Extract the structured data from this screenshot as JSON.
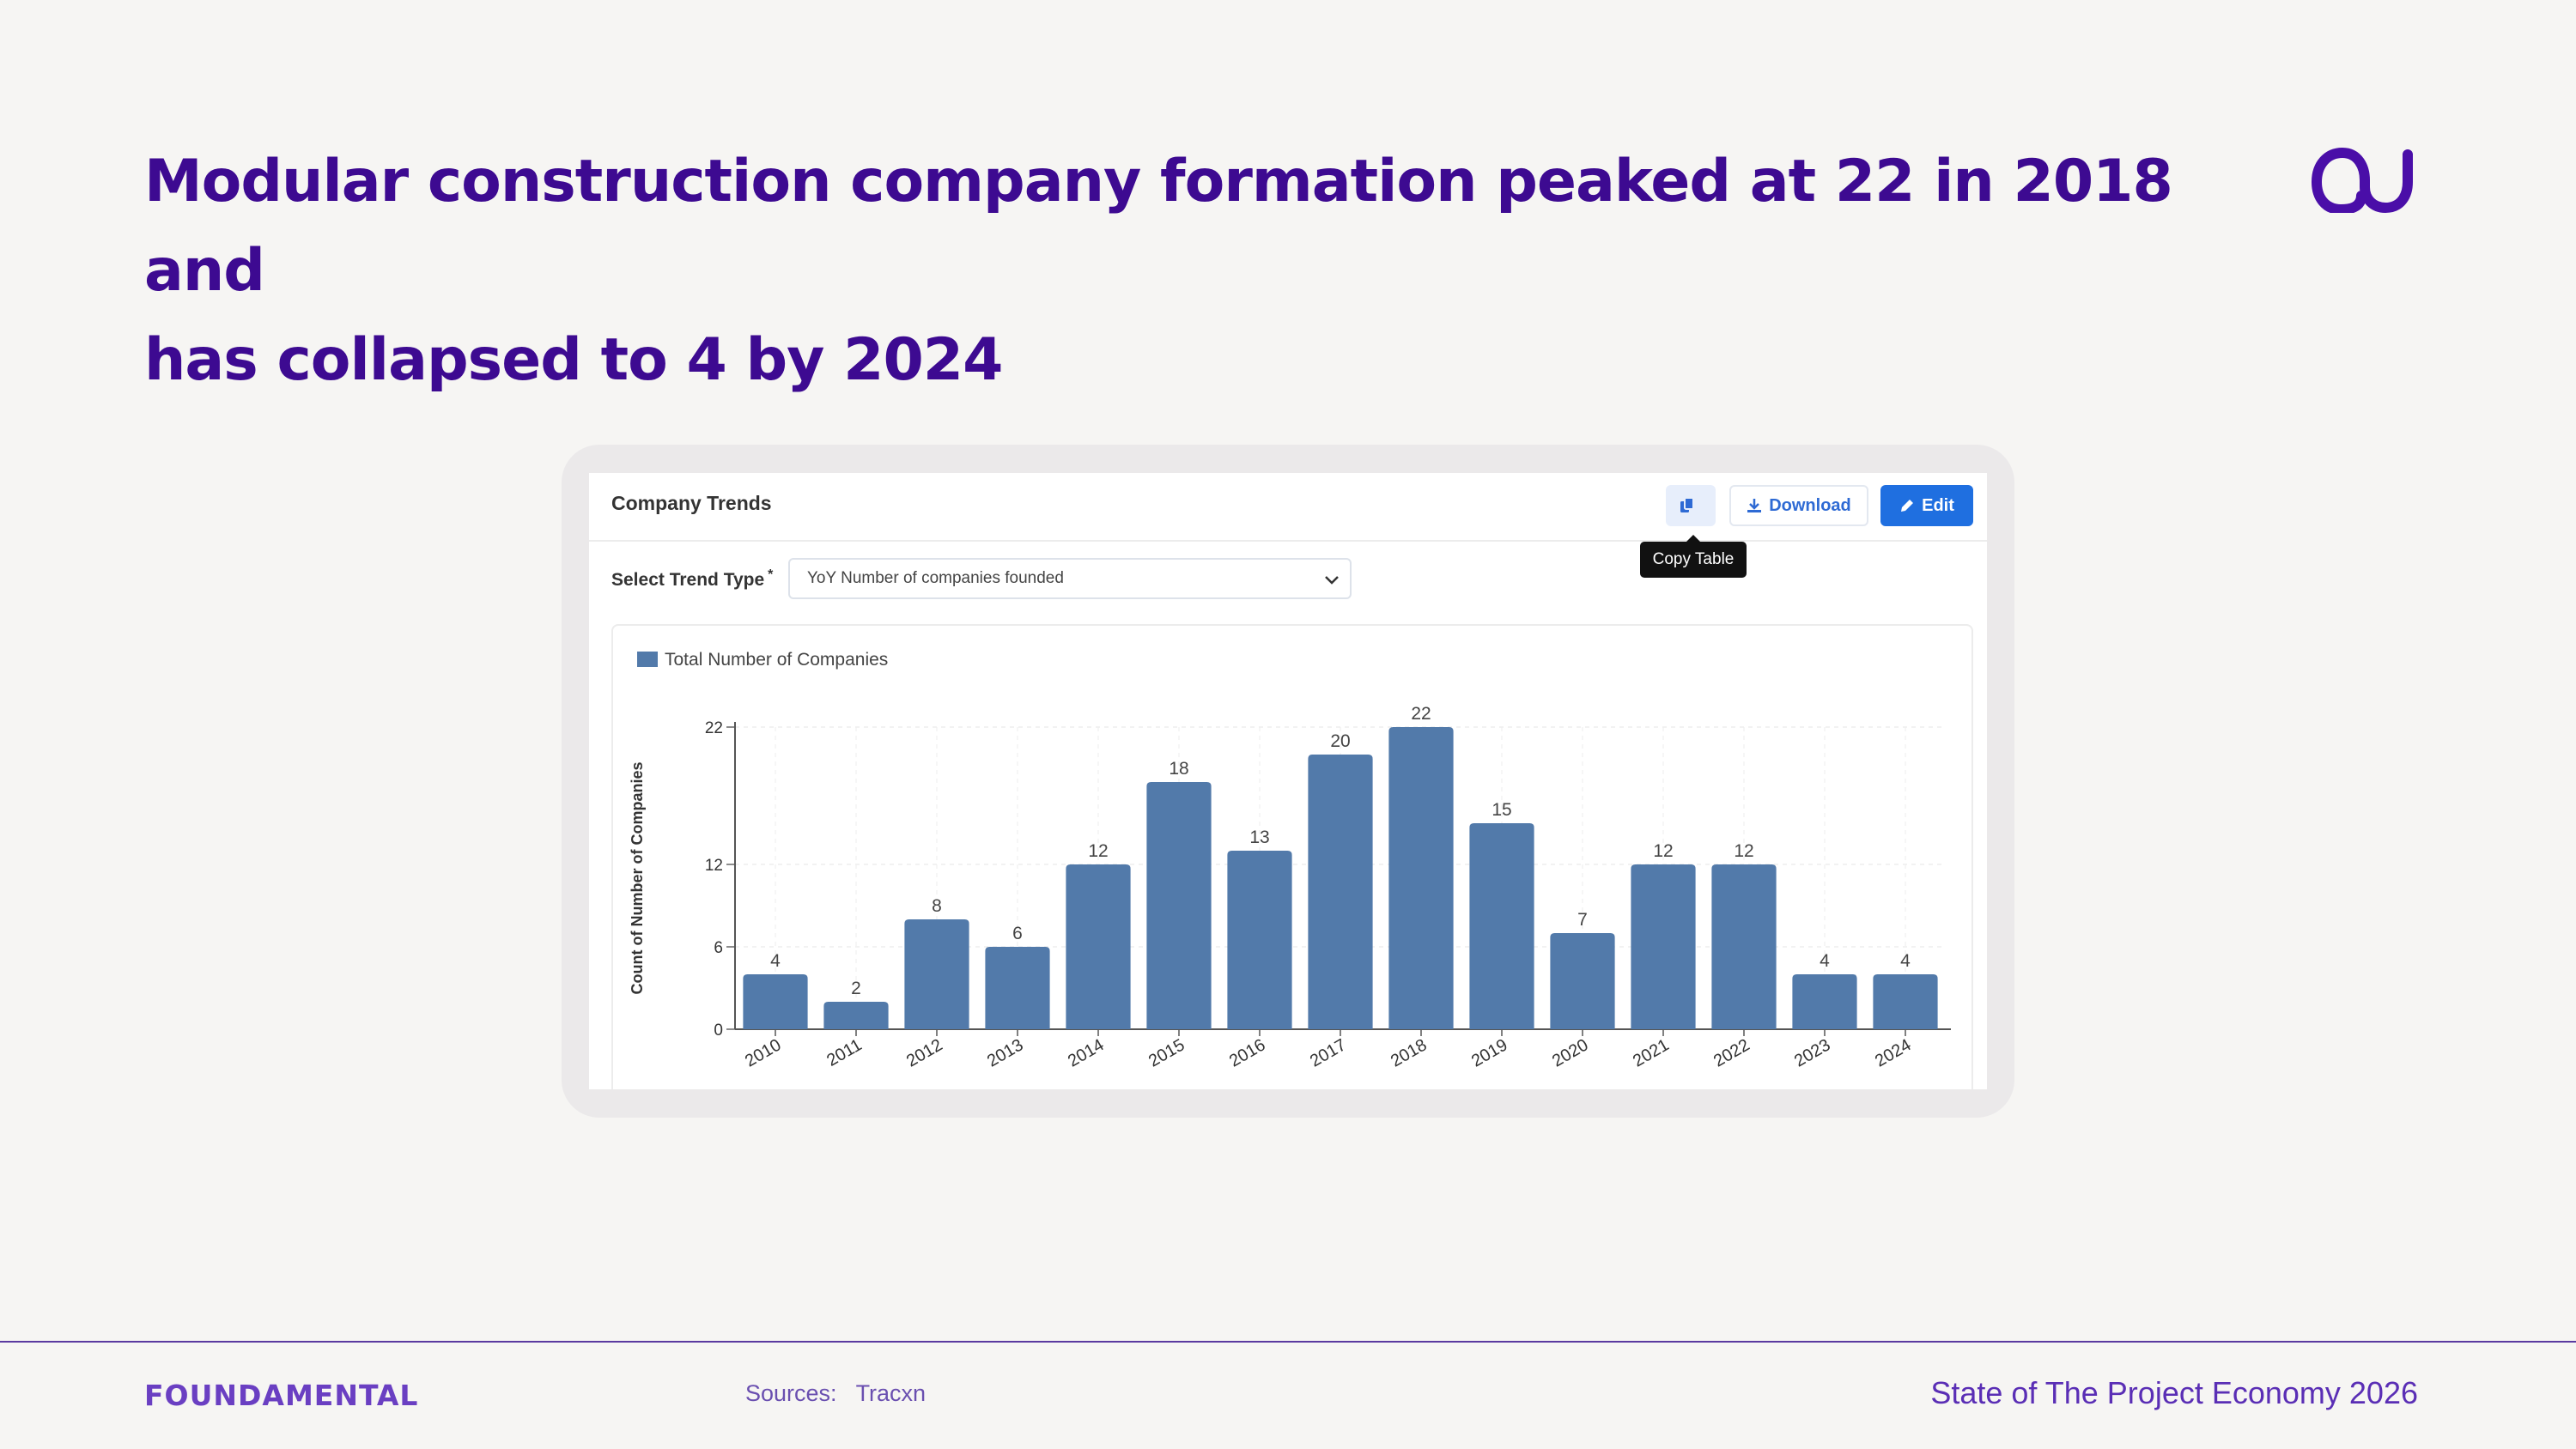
{
  "headline": {
    "line1": "Modular construction company formation peaked at 22 in 2018 and",
    "line2": "has collapsed to 4 by 2024"
  },
  "card": {
    "title": "Company Trends",
    "copy_icon": "copy-icon",
    "download_label": "Download",
    "edit_label": "Edit",
    "tooltip": "Copy Table",
    "trend_label": "Select Trend Type",
    "required_mark": "*",
    "trend_value": "YoY Number of companies founded"
  },
  "chart_data": {
    "type": "bar",
    "legend": "Total Number of Companies",
    "legend_position": "top-left",
    "ylabel": "Count of Number of Companies",
    "xlabel": "",
    "ylim": [
      0,
      22
    ],
    "yticks": [
      0,
      6,
      12,
      22
    ],
    "grid": true,
    "color": "#527aaa",
    "categories": [
      "2010",
      "2011",
      "2012",
      "2013",
      "2014",
      "2015",
      "2016",
      "2017",
      "2018",
      "2019",
      "2020",
      "2021",
      "2022",
      "2023",
      "2024"
    ],
    "values": [
      4,
      2,
      8,
      6,
      12,
      18,
      13,
      20,
      22,
      15,
      7,
      12,
      12,
      4,
      4
    ]
  },
  "footer": {
    "brand": "FOUNDAMENTAL",
    "sources_label": "Sources:",
    "sources_value": "Tracxn",
    "title": "State of The Project Economy 2026"
  }
}
